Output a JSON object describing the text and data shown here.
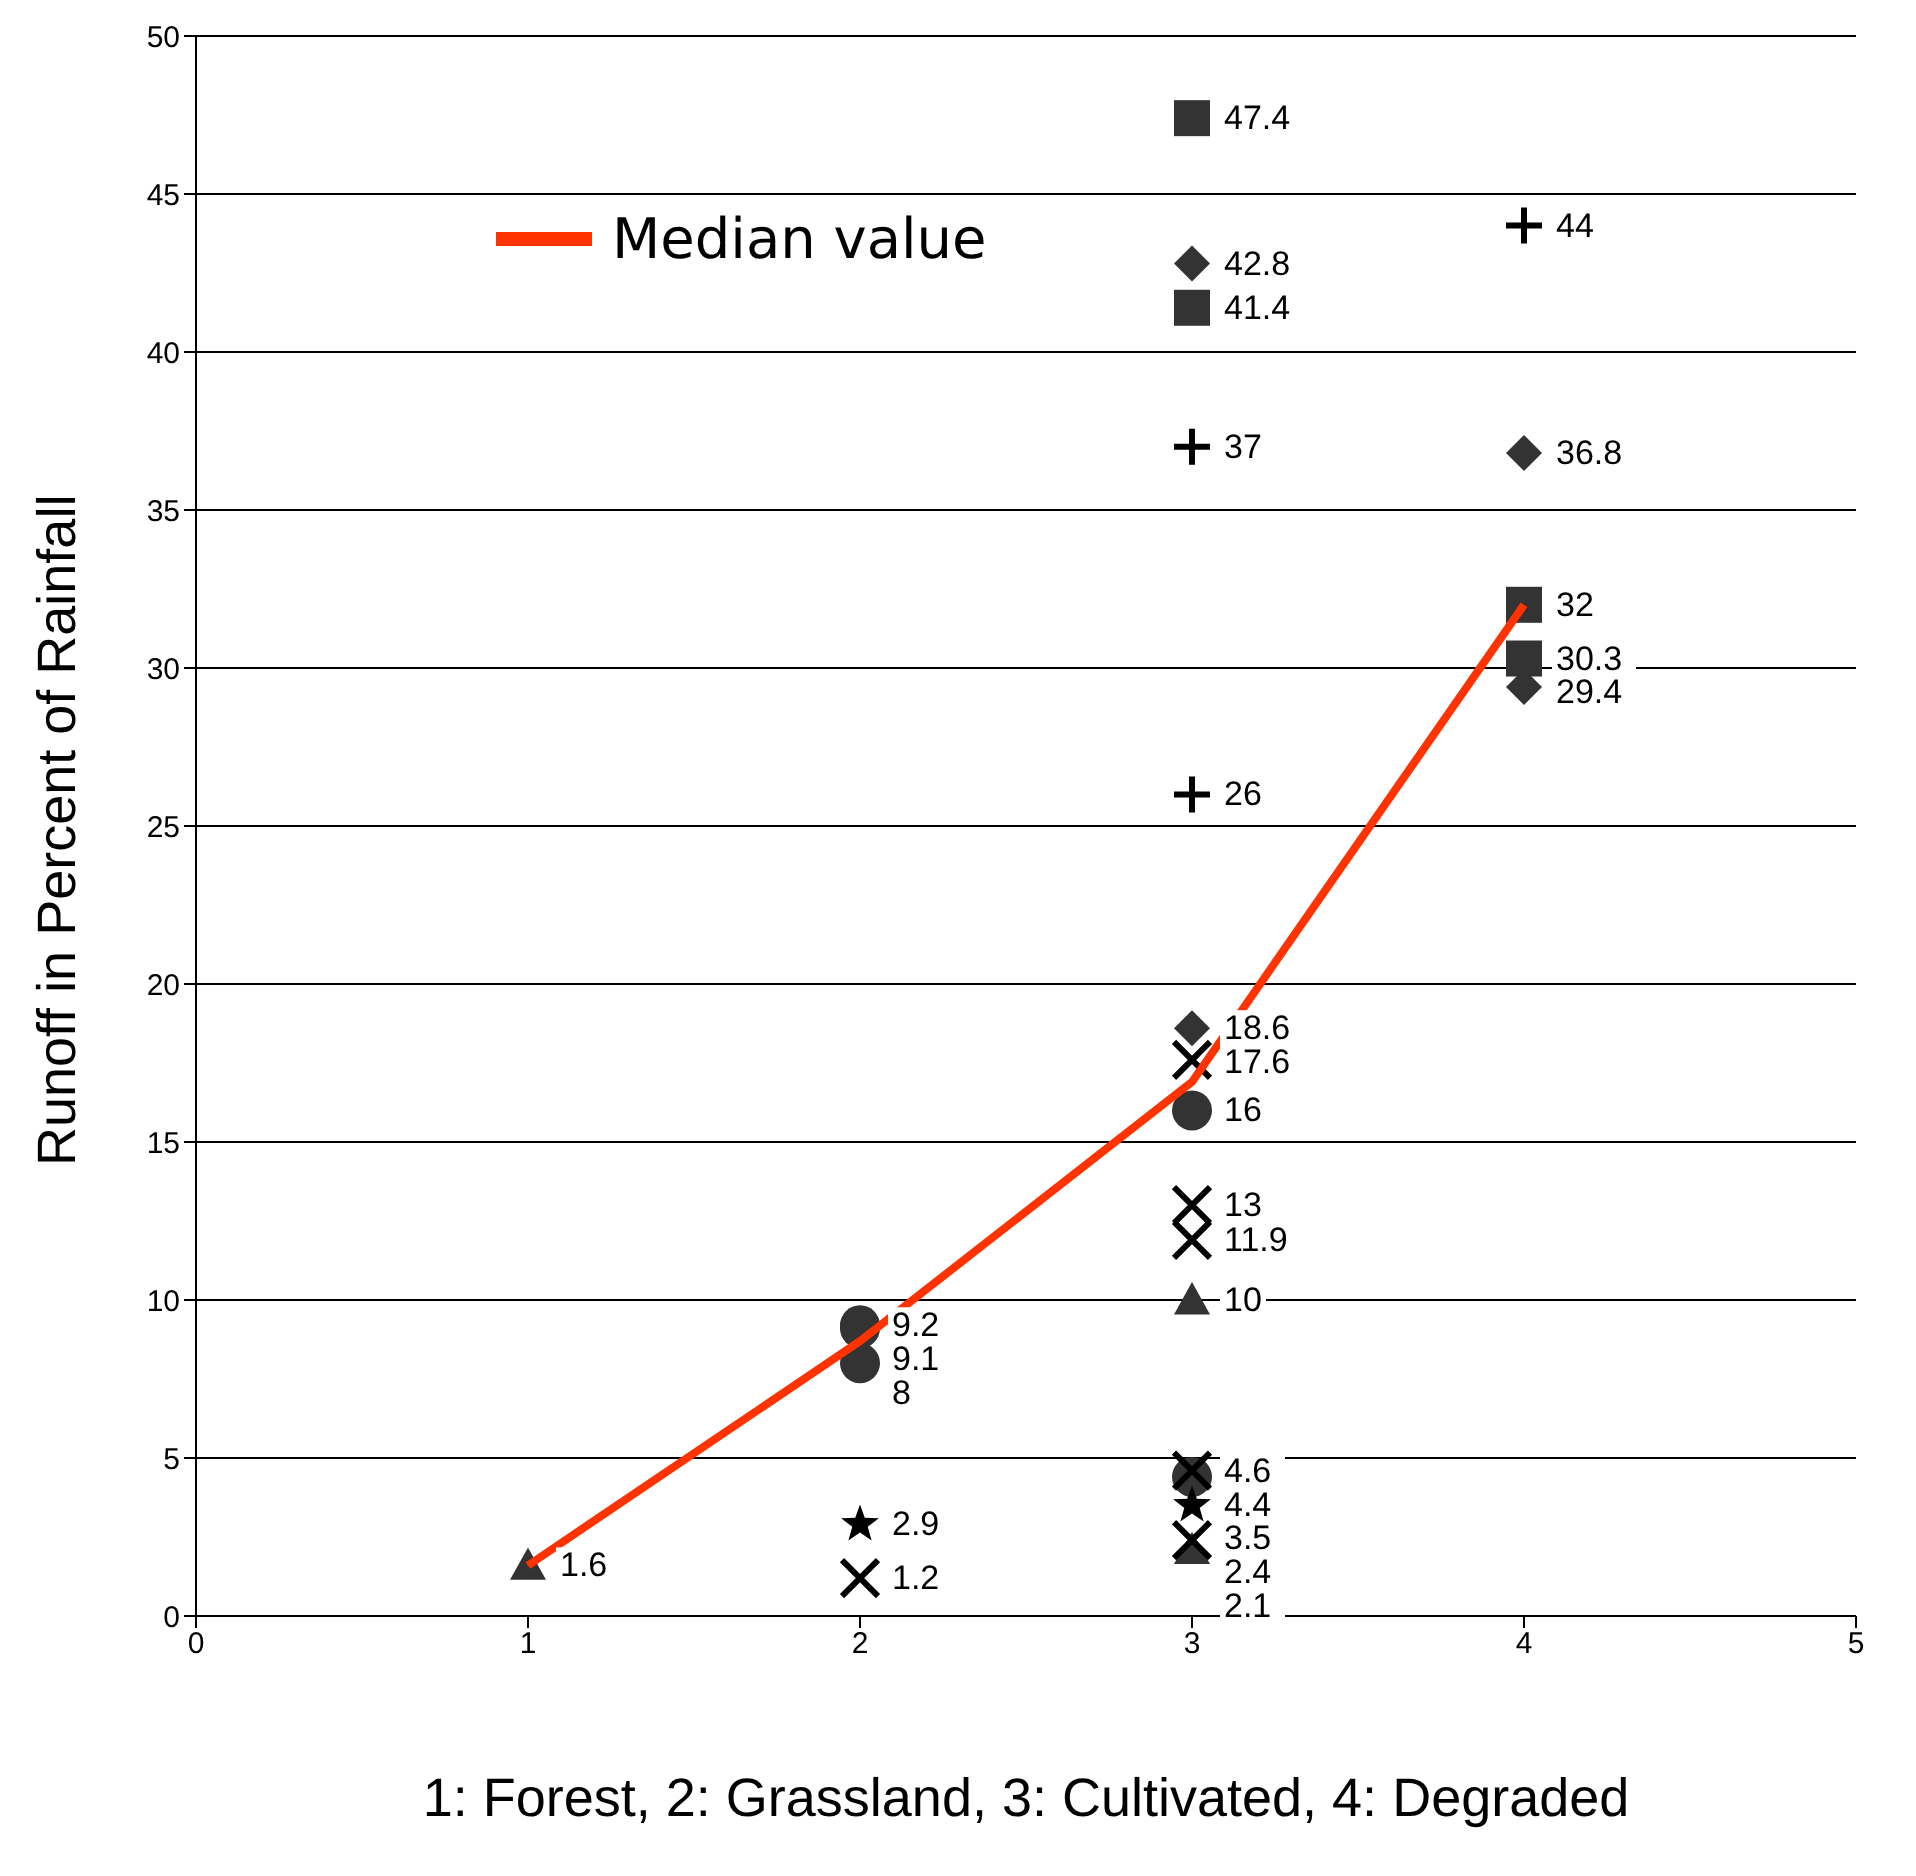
{
  "chart_data": {
    "type": "scatter",
    "xlabel": "1: Forest, 2: Grassland, 3: Cultivated, 4: Degraded",
    "ylabel": "Runoff in Percent of Rainfall",
    "xlim": [
      0,
      5
    ],
    "xticks": [
      0,
      1,
      2,
      3,
      4,
      5
    ],
    "ylim": [
      0,
      50
    ],
    "yticks": [
      0,
      5,
      10,
      15,
      20,
      25,
      30,
      35,
      40,
      45,
      50
    ],
    "grid": "y",
    "legend": "top left",
    "series": [
      {
        "color": "#333333",
        "marker": "triangle",
        "x": [
          1,
          3,
          3
        ],
        "values": [
          1.6,
          10,
          2.1
        ],
        "value_labels": [
          "1.6",
          "10",
          "2.1"
        ]
      },
      {
        "color": "#333333",
        "marker": "circle",
        "x": [
          2,
          2,
          2,
          3,
          3
        ],
        "values": [
          9.2,
          9.1,
          8,
          16,
          4.4
        ],
        "value_labels": [
          "9.2",
          "9.1",
          "8",
          "16",
          "4.4"
        ]
      },
      {
        "color": "#000000",
        "marker": "star",
        "x": [
          2,
          3
        ],
        "values": [
          2.9,
          3.5
        ],
        "value_labels": [
          "2.9",
          "3.5"
        ]
      },
      {
        "color": "#000000",
        "marker": "x",
        "x": [
          2,
          3,
          3,
          3,
          3,
          3
        ],
        "values": [
          1.2,
          17.6,
          13,
          11.9,
          4.6,
          2.4
        ],
        "value_labels": [
          "1.2",
          "17.6",
          "13",
          "11.9",
          "4.6",
          "2.4"
        ]
      },
      {
        "color": "#000000",
        "marker": "cross",
        "x": [
          3,
          3,
          4
        ],
        "values": [
          37,
          26,
          44
        ],
        "value_labels": [
          "37",
          "26",
          "44"
        ]
      },
      {
        "color": "#333333",
        "marker": "square",
        "x": [
          3,
          3,
          4,
          4
        ],
        "values": [
          47.4,
          41.4,
          32,
          30.3
        ],
        "value_labels": [
          "47.4",
          "41.4",
          "32",
          "30.3"
        ]
      },
      {
        "color": "#333333",
        "marker": "diamond",
        "x": [
          3,
          3,
          4,
          4
        ],
        "values": [
          42.8,
          18.6,
          36.8,
          29.4
        ],
        "value_labels": [
          "42.8",
          "18.6",
          "36.8",
          "29.4"
        ]
      },
      {
        "type": "line",
        "name": "Median value",
        "color": "#ff3300",
        "marker": "none",
        "x": [
          1,
          2,
          3,
          4
        ],
        "values": [
          1.6,
          8.7,
          16.9,
          32
        ]
      }
    ]
  }
}
